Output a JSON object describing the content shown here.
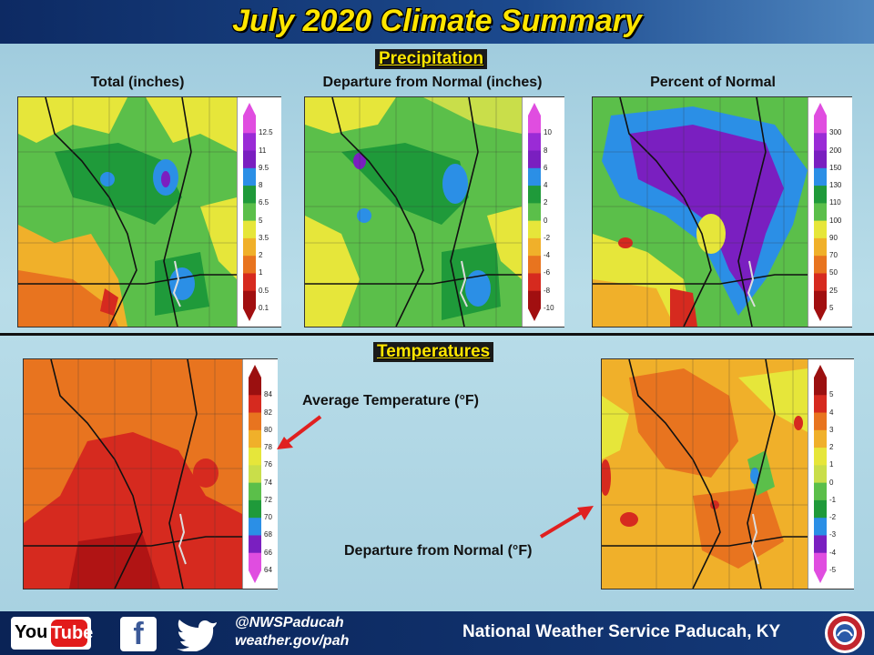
{
  "header": {
    "title": "July 2020 Climate Summary"
  },
  "sections": {
    "precip": "Precipitation",
    "temps": "Temperatures"
  },
  "maps": [
    {
      "caption": "Total (inches)",
      "legend": [
        "12.5",
        "11",
        "9.5",
        "8",
        "6.5",
        "5",
        "3.5",
        "2",
        "1",
        "0.5",
        "0.1"
      ],
      "legend_colors": [
        "#e04de0",
        "#9a2bd6",
        "#7a1fc0",
        "#2b8fe6",
        "#1f9a3a",
        "#5bbf4a",
        "#e6e63a",
        "#f0b02a",
        "#e8741f",
        "#d62a1f",
        "#a10f10"
      ]
    },
    {
      "caption": "Departure from Normal (inches)",
      "legend": [
        "10",
        "8",
        "6",
        "4",
        "2",
        "0",
        "-2",
        "-4",
        "-6",
        "-8",
        "-10"
      ],
      "legend_colors": [
        "#e04de0",
        "#9a2bd6",
        "#7a1fc0",
        "#2b8fe6",
        "#1f9a3a",
        "#5bbf4a",
        "#e6e63a",
        "#f0b02a",
        "#e8741f",
        "#d62a1f",
        "#a10f10"
      ]
    },
    {
      "caption": "Percent of Normal",
      "legend": [
        "300",
        "200",
        "150",
        "130",
        "110",
        "100",
        "90",
        "70",
        "50",
        "25",
        "5"
      ],
      "legend_colors": [
        "#e04de0",
        "#9a2bd6",
        "#7a1fc0",
        "#2b8fe6",
        "#1f9a3a",
        "#5bbf4a",
        "#e6e63a",
        "#f0b02a",
        "#e8741f",
        "#d62a1f",
        "#a10f10"
      ]
    },
    {
      "caption": "Average Temperature (°F)",
      "legend": [
        "84",
        "82",
        "80",
        "78",
        "76",
        "74",
        "72",
        "70",
        "68",
        "66",
        "64"
      ],
      "legend_colors": [
        "#9b1010",
        "#d62a1f",
        "#e8741f",
        "#f0b02a",
        "#e6e63a",
        "#c9de4a",
        "#5bbf4a",
        "#1f9a3a",
        "#2b8fe6",
        "#7a1fc0",
        "#e04de0"
      ]
    },
    {
      "caption": "Departure from Normal (°F)",
      "legend": [
        "5",
        "4",
        "3",
        "2",
        "1",
        "0",
        "-1",
        "-2",
        "-3",
        "-4",
        "-5"
      ],
      "legend_colors": [
        "#9b1010",
        "#d62a1f",
        "#e8741f",
        "#f0b02a",
        "#e6e63a",
        "#c9de4a",
        "#5bbf4a",
        "#1f9a3a",
        "#2b8fe6",
        "#7a1fc0",
        "#e04de0"
      ]
    }
  ],
  "footer": {
    "youtube_left": "You",
    "youtube_right": "Tube",
    "facebook": "f",
    "handle": "@NWSPaducah",
    "site": "weather.gov/pah",
    "office": "National Weather Service Paducah, KY"
  },
  "icons": [
    "youtube-icon",
    "facebook-icon",
    "twitter-icon",
    "nws-seal-icon",
    "arrow-icon"
  ]
}
